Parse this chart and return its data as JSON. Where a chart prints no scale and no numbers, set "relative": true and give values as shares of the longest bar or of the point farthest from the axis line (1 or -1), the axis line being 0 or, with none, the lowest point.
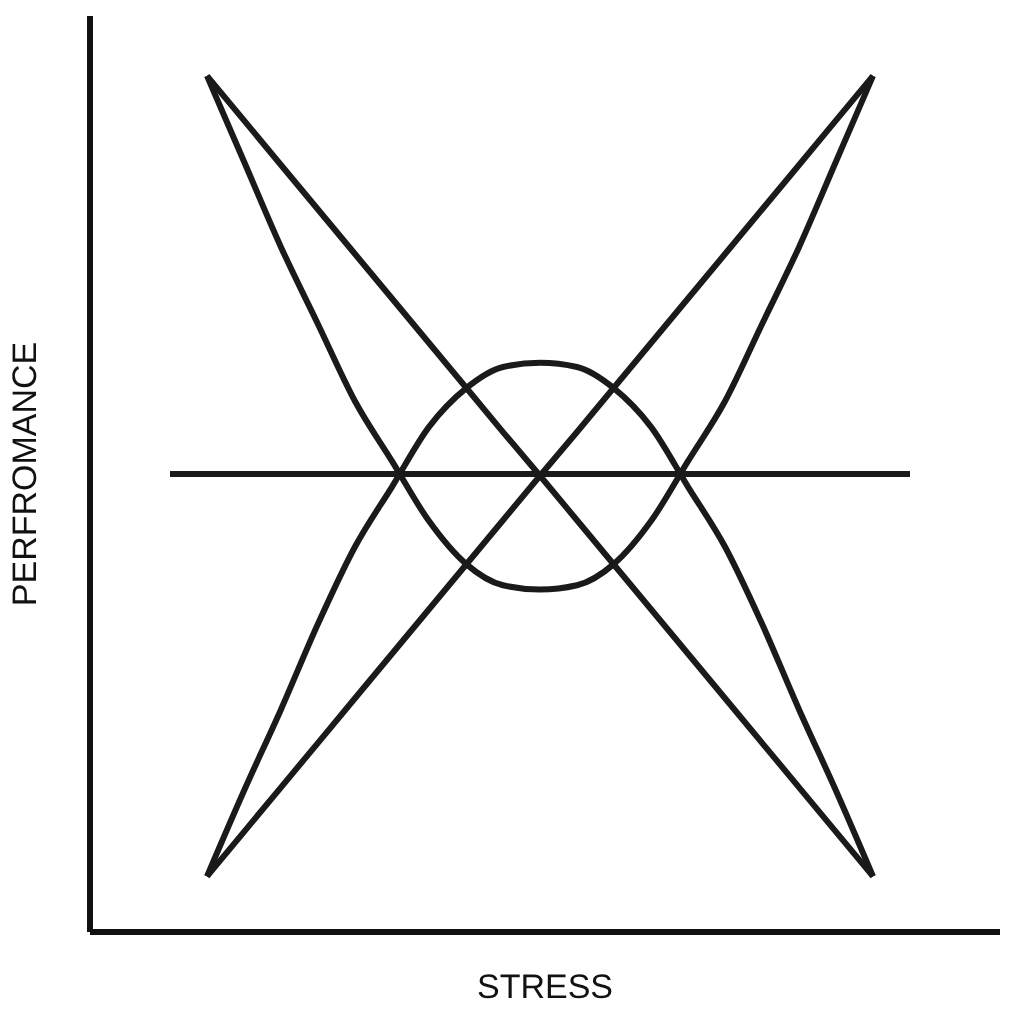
{
  "chart_data": {
    "type": "line",
    "relative": true,
    "xlabel": "STRESS",
    "ylabel": "PERFROMANCE",
    "grid": false,
    "legend": false,
    "marker": "none",
    "line_style": "solid",
    "categories": [
      null,
      null,
      null,
      null,
      null,
      null,
      null,
      null,
      null,
      null,
      null,
      null,
      null,
      null,
      null,
      null,
      null,
      null,
      null,
      null,
      null
    ],
    "series": [
      {
        "color": "#1a1a1a",
        "values": [
          null,
          1,
          0.948,
          0.896,
          0.844,
          0.792,
          0.74,
          0.688,
          0.636,
          0.584,
          0.533,
          0.481,
          0.429,
          0.377,
          0.325,
          0.273,
          0.221,
          0.169,
          0.117,
          0.065,
          null
        ]
      },
      {
        "color": "#1a1a1a",
        "values": [
          null,
          0.065,
          0.117,
          0.169,
          0.221,
          0.273,
          0.325,
          0.377,
          0.429,
          0.481,
          0.533,
          0.584,
          0.636,
          0.688,
          0.74,
          0.792,
          0.844,
          0.896,
          0.948,
          1,
          null
        ]
      },
      {
        "color": "#1a1a1a",
        "values": [
          0.535,
          0.535,
          0.535,
          0.535,
          0.535,
          0.535,
          0.535,
          0.535,
          0.535,
          0.535,
          0.535,
          0.535,
          0.535,
          0.535,
          0.535,
          0.535,
          0.535,
          0.535,
          0.535,
          0.535,
          0.535
        ]
      },
      {
        "color": "#1a1a1a",
        "values": [
          null,
          1,
          0.9,
          0.8,
          0.71,
          0.62,
          0.55,
          0.48,
          0.43,
          0.405,
          0.4,
          0.405,
          0.43,
          0.48,
          0.55,
          0.62,
          0.71,
          0.8,
          0.9,
          1,
          null
        ]
      },
      {
        "color": "#1a1a1a",
        "values": [
          null,
          0.065,
          0.165,
          0.26,
          0.36,
          0.45,
          0.52,
          0.59,
          0.635,
          0.66,
          0.665,
          0.66,
          0.635,
          0.59,
          0.52,
          0.45,
          0.36,
          0.26,
          0.165,
          0.065,
          null
        ]
      }
    ]
  }
}
